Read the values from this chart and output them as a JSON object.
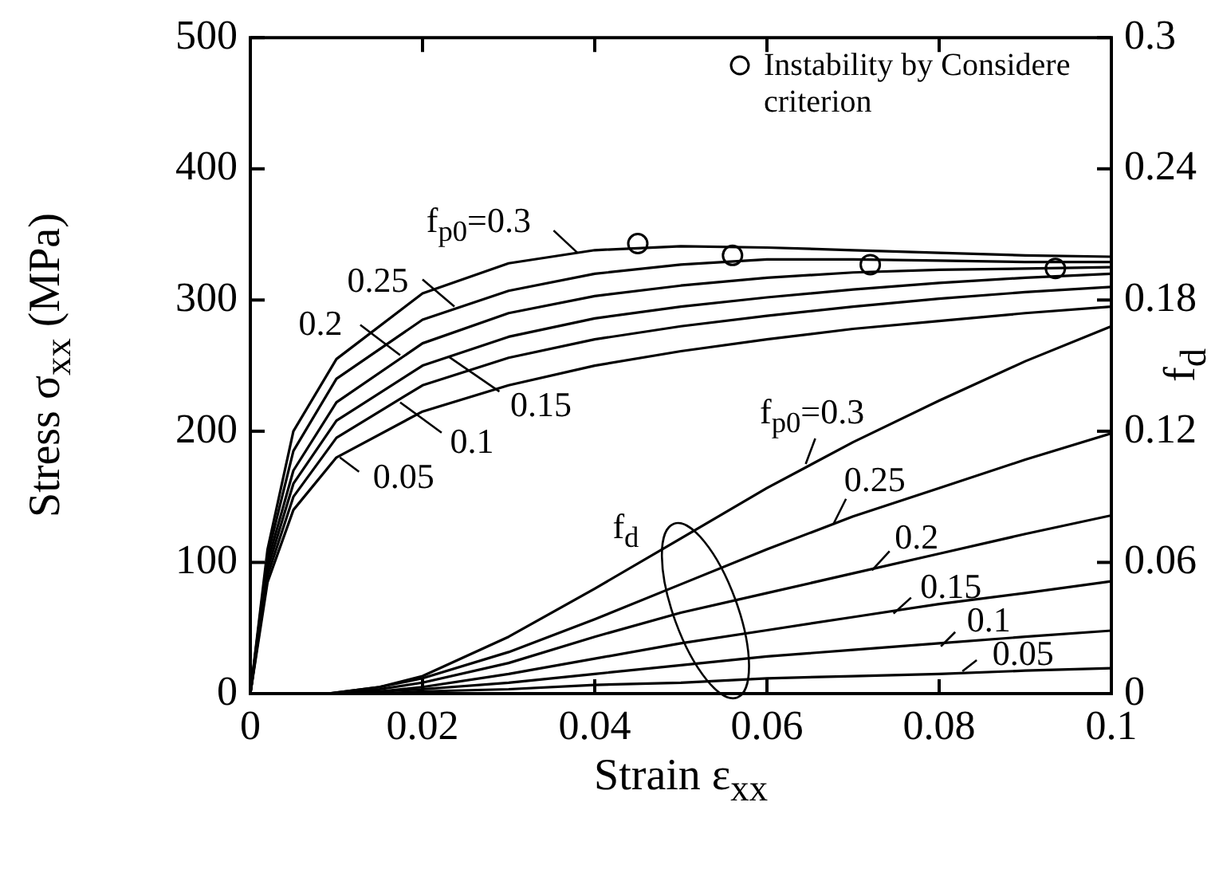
{
  "chart_data": {
    "type": "line",
    "xlabel": "Strain  ε$_{xx}$",
    "ylabel": "Stress σ$_{xx}$ (MPa)",
    "y2label": "f$_{d}$",
    "xlim": [
      0,
      0.1
    ],
    "xticks": [
      0,
      0.02,
      0.04,
      0.06,
      0.08,
      0.1
    ],
    "ylim": [
      0,
      500
    ],
    "yticks": [
      0,
      100,
      200,
      300,
      400,
      500
    ],
    "y2lim": [
      0,
      0.3
    ],
    "y2ticks": [
      0,
      0.06,
      0.12,
      0.18,
      0.24,
      0.3
    ],
    "grid": false,
    "legend": "top right",
    "marker": "none",
    "line_style": "solid",
    "series": [
      {
        "color": "#000000",
        "x": [
          0,
          0.002,
          0.005,
          0.01,
          0.02,
          0.03,
          0.04,
          0.05,
          0.06,
          0.07,
          0.08,
          0.09,
          0.1
        ],
        "values": [
          0,
          110,
          200,
          255,
          305,
          328,
          338,
          341,
          340,
          338,
          336,
          334,
          333
        ]
      },
      {
        "color": "#000000",
        "x": [
          0,
          0.002,
          0.005,
          0.01,
          0.02,
          0.03,
          0.04,
          0.05,
          0.06,
          0.07,
          0.08,
          0.09,
          0.1
        ],
        "values": [
          0,
          105,
          185,
          240,
          285,
          307,
          320,
          327,
          331,
          331,
          330,
          329,
          329
        ]
      },
      {
        "color": "#000000",
        "x": [
          0,
          0.002,
          0.005,
          0.01,
          0.02,
          0.03,
          0.04,
          0.05,
          0.06,
          0.07,
          0.08,
          0.09,
          0.1
        ],
        "values": [
          0,
          100,
          170,
          222,
          267,
          290,
          303,
          311,
          317,
          321,
          323,
          324,
          325
        ]
      },
      {
        "color": "#000000",
        "x": [
          0,
          0.002,
          0.005,
          0.01,
          0.02,
          0.03,
          0.04,
          0.05,
          0.06,
          0.07,
          0.08,
          0.09,
          0.1
        ],
        "values": [
          0,
          95,
          160,
          208,
          250,
          272,
          286,
          295,
          302,
          308,
          313,
          317,
          320
        ]
      },
      {
        "color": "#000000",
        "x": [
          0,
          0.002,
          0.005,
          0.01,
          0.02,
          0.03,
          0.04,
          0.05,
          0.06,
          0.07,
          0.08,
          0.09,
          0.1
        ],
        "values": [
          0,
          90,
          150,
          195,
          235,
          256,
          270,
          280,
          288,
          295,
          301,
          306,
          310
        ]
      },
      {
        "color": "#000000",
        "x": [
          0,
          0.002,
          0.005,
          0.01,
          0.02,
          0.03,
          0.04,
          0.05,
          0.06,
          0.07,
          0.08,
          0.09,
          0.1
        ],
        "values": [
          0,
          85,
          140,
          180,
          215,
          235,
          250,
          261,
          270,
          278,
          284,
          290,
          295
        ]
      },
      {
        "color": "#000000",
        "axis": "y2",
        "x": [
          0,
          0.009,
          0.015,
          0.02,
          0.03,
          0.04,
          0.05,
          0.06,
          0.07,
          0.08,
          0.09,
          0.1
        ],
        "values": [
          0,
          0,
          0.003,
          0.008,
          0.026,
          0.048,
          0.071,
          0.094,
          0.115,
          0.134,
          0.152,
          0.168
        ]
      },
      {
        "color": "#000000",
        "axis": "y2",
        "x": [
          0,
          0.009,
          0.015,
          0.02,
          0.03,
          0.04,
          0.05,
          0.06,
          0.07,
          0.08,
          0.09,
          0.1
        ],
        "values": [
          0,
          0,
          0.003,
          0.007,
          0.019,
          0.034,
          0.05,
          0.066,
          0.081,
          0.094,
          0.107,
          0.119
        ]
      },
      {
        "color": "#000000",
        "axis": "y2",
        "x": [
          0,
          0.009,
          0.015,
          0.02,
          0.03,
          0.04,
          0.05,
          0.06,
          0.07,
          0.08,
          0.09,
          0.1
        ],
        "values": [
          0,
          0,
          0.002,
          0.005,
          0.014,
          0.026,
          0.037,
          0.046,
          0.055,
          0.064,
          0.073,
          0.0815
        ]
      },
      {
        "color": "#000000",
        "axis": "y2",
        "x": [
          0,
          0.009,
          0.015,
          0.02,
          0.03,
          0.04,
          0.05,
          0.06,
          0.07,
          0.08,
          0.09,
          0.1
        ],
        "values": [
          0,
          0,
          0.001,
          0.003,
          0.009,
          0.016,
          0.023,
          0.029,
          0.035,
          0.041,
          0.046,
          0.0514
        ]
      },
      {
        "color": "#000000",
        "axis": "y2",
        "x": [
          0,
          0.009,
          0.015,
          0.02,
          0.03,
          0.04,
          0.05,
          0.06,
          0.07,
          0.08,
          0.09,
          0.1
        ],
        "values": [
          0,
          0,
          0.001,
          0.002,
          0.005,
          0.009,
          0.013,
          0.017,
          0.02,
          0.023,
          0.026,
          0.0288
        ]
      },
      {
        "color": "#000000",
        "axis": "y2",
        "x": [
          0,
          0.009,
          0.015,
          0.02,
          0.03,
          0.04,
          0.05,
          0.06,
          0.07,
          0.08,
          0.09,
          0.1
        ],
        "values": [
          0,
          0,
          0,
          0.001,
          0.002,
          0.004,
          0.005,
          0.007,
          0.008,
          0.009,
          0.0105,
          0.0116
        ]
      },
      {
        "type": "scatter",
        "marker": "circle",
        "name": "Instability by Considere criterion",
        "color": "#000000",
        "x": [
          0.045,
          0.056,
          0.072,
          0.0935
        ],
        "values": [
          343,
          334,
          327,
          324
        ]
      }
    ],
    "annotations": [
      {
        "text": "f$_{p0}$=0.3",
        "x": 0.038,
        "y": 336
      },
      {
        "text": "0.25",
        "x": 0.0237,
        "y": 295
      },
      {
        "text": "0.2",
        "x": 0.0174,
        "y": 258
      },
      {
        "text": "0.15",
        "x": 0.023,
        "y": 257
      },
      {
        "text": "0.1",
        "x": 0.0174,
        "y": 222
      },
      {
        "text": "0.05",
        "x": 0.0104,
        "y": 180
      },
      {
        "text": "f$_{p0}$=0.3",
        "x": 0.0645,
        "y": 175
      },
      {
        "text": "0.25",
        "x": 0.0677,
        "y": 129
      },
      {
        "text": "0.2",
        "x": 0.0722,
        "y": 94
      },
      {
        "text": "0.15",
        "x": 0.0747,
        "y": 61
      },
      {
        "text": "0.1",
        "x": 0.0802,
        "y": 36
      },
      {
        "text": "0.05",
        "x": 0.0827,
        "y": 17
      },
      "f$_{d}$"
    ]
  }
}
